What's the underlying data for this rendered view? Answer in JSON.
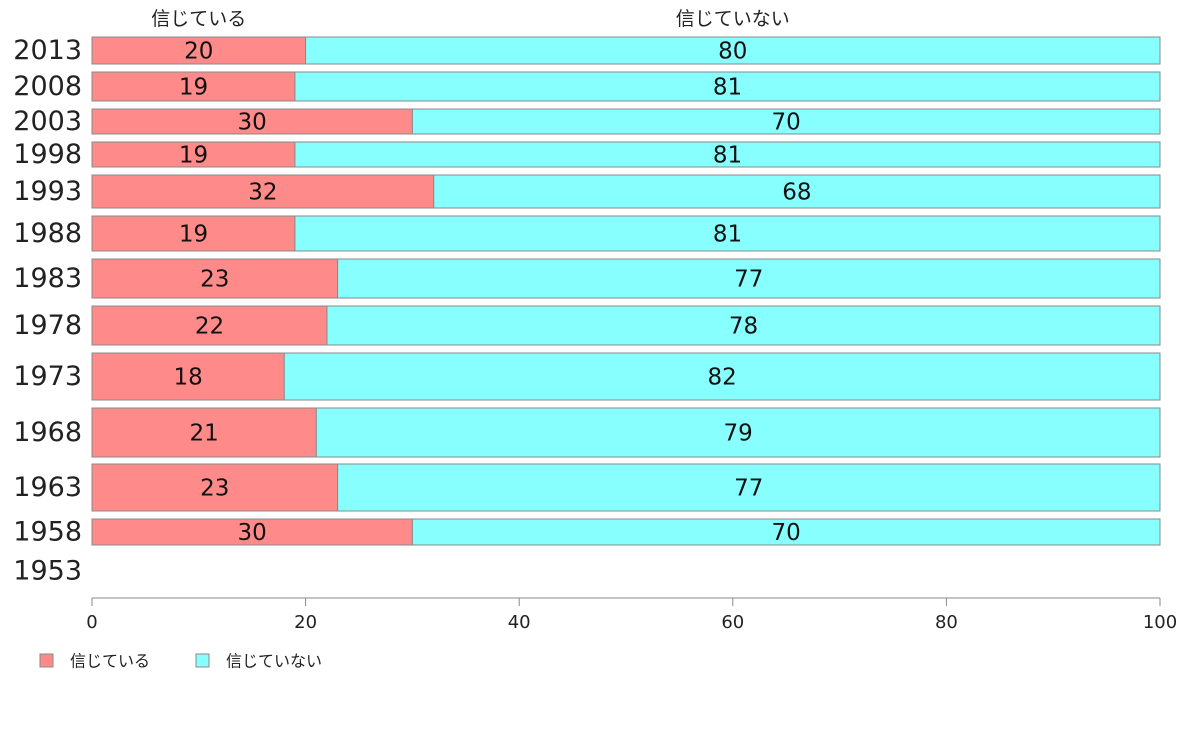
{
  "chart_data": {
    "type": "bar",
    "orientation": "horizontal",
    "stacked": true,
    "categories": [
      "2013",
      "2008",
      "2003",
      "1998",
      "1993",
      "1988",
      "1983",
      "1978",
      "1973",
      "1968",
      "1963",
      "1958",
      "1953"
    ],
    "series": [
      {
        "name": "信じている",
        "color": "#ff8a8a",
        "values": [
          20,
          19,
          30,
          19,
          32,
          19,
          23,
          22,
          18,
          21,
          23,
          30,
          null
        ]
      },
      {
        "name": "信じていない",
        "color": "#88ffff",
        "values": [
          80,
          81,
          70,
          81,
          68,
          81,
          77,
          78,
          82,
          79,
          77,
          70,
          null
        ]
      }
    ],
    "column_headers": [
      "信じている",
      "信じていない"
    ],
    "xlim": [
      0,
      100
    ],
    "xticks": [
      0,
      20,
      40,
      60,
      80,
      100
    ],
    "xlabel": "",
    "ylabel": "",
    "grid": false,
    "legend_position": "bottom-left"
  }
}
